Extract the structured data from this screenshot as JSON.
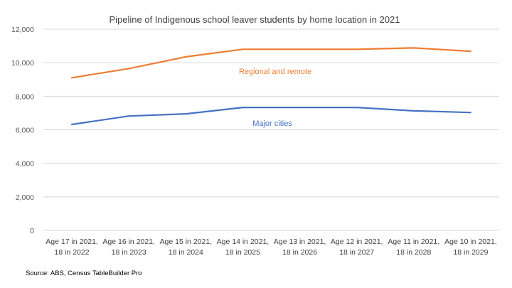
{
  "chart_data": {
    "type": "line",
    "title": "Pipeline of Indigenous school leaver students by home location in 2021",
    "categories": [
      [
        "Age 17 in 2021,",
        "18 in 2022"
      ],
      [
        "Age 16 in 2021,",
        "18 in 2023"
      ],
      [
        "Age 15 in 2021,",
        "18 in 2024"
      ],
      [
        "Age 14 in 2021,",
        "18 in 2025"
      ],
      [
        "Age 13 in 2021,",
        "18 in 2026"
      ],
      [
        "Age 12 in 2021,",
        "18 in 2027"
      ],
      [
        "Age 11 in 2021,",
        "18 in 2028"
      ],
      [
        "Age 10 in 2021,",
        "18 in 2029"
      ]
    ],
    "ylim": [
      0,
      12000
    ],
    "yticks": [
      0,
      2000,
      4000,
      6000,
      8000,
      10000,
      12000
    ],
    "ytick_labels": [
      "0",
      "2,000",
      "4,000",
      "6,000",
      "8,000",
      "10,000",
      "12,000"
    ],
    "grid": true,
    "series": [
      {
        "name": "Regional and remote",
        "color": "#ED7D31",
        "values": [
          9100,
          9650,
          10350,
          10800,
          10800,
          10800,
          10880,
          10680
        ]
      },
      {
        "name": "Major cities",
        "color": "#4472C4",
        "values": [
          6320,
          6820,
          6950,
          7330,
          7330,
          7330,
          7130,
          7030
        ]
      }
    ],
    "source": "Source: ABS, Census TableBuilder Pro"
  }
}
